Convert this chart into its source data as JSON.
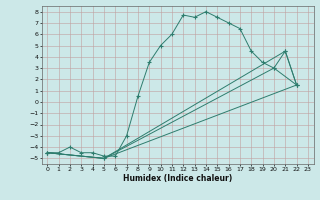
{
  "title": "",
  "xlabel": "Humidex (Indice chaleur)",
  "xlim": [
    -0.5,
    23.5
  ],
  "ylim": [
    -5.5,
    8.5
  ],
  "xticks": [
    0,
    1,
    2,
    3,
    4,
    5,
    6,
    7,
    8,
    9,
    10,
    11,
    12,
    13,
    14,
    15,
    16,
    17,
    18,
    19,
    20,
    21,
    22,
    23
  ],
  "yticks": [
    -5,
    -4,
    -3,
    -2,
    -1,
    0,
    1,
    2,
    3,
    4,
    5,
    6,
    7,
    8
  ],
  "background_color": "#cce8e8",
  "grid_color": "#aacfcf",
  "line_color": "#2e7d6e",
  "line1_x": [
    0,
    1,
    2,
    3,
    4,
    5,
    6,
    7,
    8,
    9,
    10,
    11,
    12,
    13,
    14,
    15,
    16,
    17,
    18,
    19,
    20,
    21,
    22
  ],
  "line1_y": [
    -4.5,
    -4.5,
    -4.0,
    -4.5,
    -4.5,
    -4.8,
    -4.8,
    -3.0,
    0.5,
    3.5,
    5.0,
    6.0,
    7.7,
    7.5,
    8.0,
    7.5,
    7.0,
    6.5,
    4.5,
    3.5,
    3.0,
    4.5,
    1.5
  ],
  "line2_x": [
    0,
    5,
    22
  ],
  "line2_y": [
    -4.5,
    -5.0,
    1.5
  ],
  "line3_x": [
    0,
    5,
    20,
    22
  ],
  "line3_y": [
    -4.5,
    -5.0,
    3.0,
    1.5
  ],
  "line4_x": [
    0,
    5,
    21,
    22
  ],
  "line4_y": [
    -4.5,
    -5.0,
    4.5,
    1.5
  ]
}
